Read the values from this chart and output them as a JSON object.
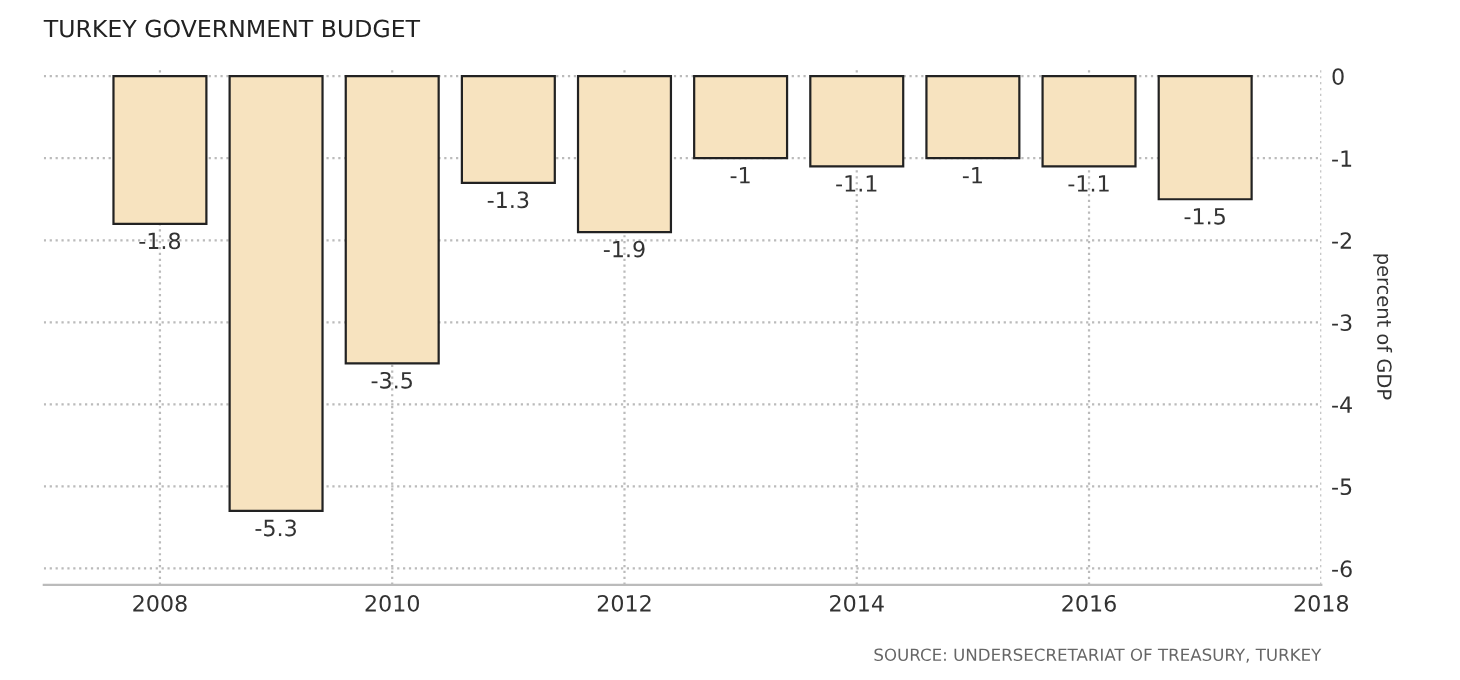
{
  "chart_data": {
    "type": "bar",
    "title": "TURKEY GOVERNMENT BUDGET",
    "ylabel": "percent of GDP",
    "x": [
      2008,
      2009,
      2010,
      2011,
      2012,
      2013,
      2014,
      2015,
      2016,
      2017
    ],
    "values": [
      -1.8,
      -5.3,
      -3.5,
      -1.3,
      -1.9,
      -1,
      -1.1,
      -1,
      -1.1,
      -1.5
    ],
    "color": "#f7e3bf",
    "xlim": [
      2007,
      2018
    ],
    "xticks": [
      2008,
      2010,
      2012,
      2014,
      2016,
      2018
    ],
    "ylim": [
      -6.2,
      0.1
    ],
    "yticks": [
      0,
      -1,
      -2,
      -3,
      -4,
      -5,
      -6
    ],
    "grid": true,
    "data_labels": true,
    "annotations": [
      "SOURCE: UNDERSECRETARIAT OF TREASURY, TURKEY"
    ]
  }
}
